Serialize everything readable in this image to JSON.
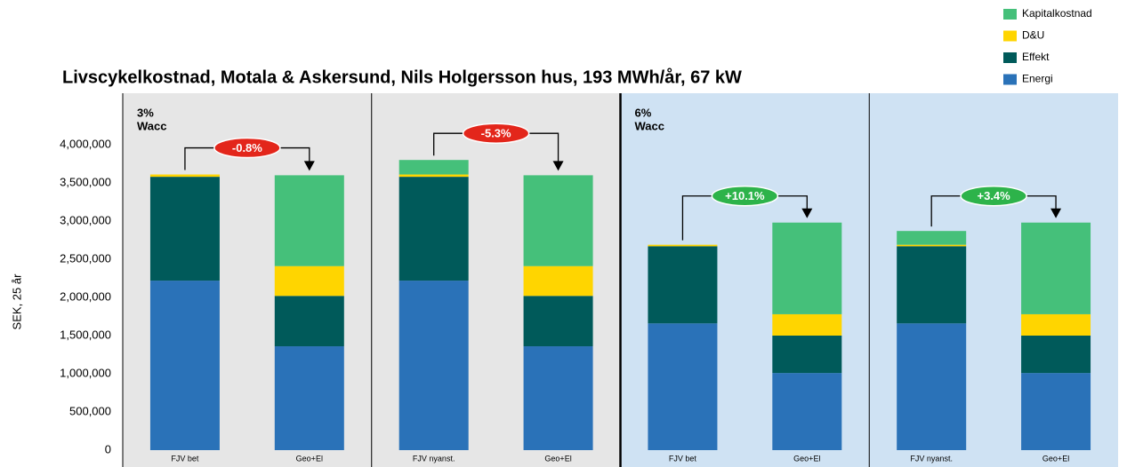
{
  "chart_data": {
    "type": "stacked-bar",
    "title": "Livscykelkostnad, Motala & Askersund, Nils Holgersson hus, 193 MWh/år, 67 kW",
    "y_label": "SEK, 25 år",
    "categories": [
      "FJV bet",
      "Geo+El",
      "FJV nyanst.",
      "Geo+El",
      "FJV bet",
      "Geo+El",
      "FJV nyanst.",
      "Geo+El"
    ],
    "series": [
      {
        "name": "Energi",
        "color": "#2a72b8",
        "values": [
          2220000,
          1360000,
          2220000,
          1360000,
          1660000,
          1010000,
          1660000,
          1010000
        ]
      },
      {
        "name": "Effekt",
        "color": "#005a5a",
        "values": [
          1360000,
          660000,
          1360000,
          660000,
          1010000,
          490000,
          1010000,
          490000
        ]
      },
      {
        "name": "D&U",
        "color": "#ffd500",
        "values": [
          30000,
          390000,
          30000,
          390000,
          20000,
          280000,
          20000,
          280000
        ]
      },
      {
        "name": "Kapitalkostnad",
        "color": "#45c07a",
        "values": [
          0,
          1190000,
          190000,
          1190000,
          0,
          1200000,
          180000,
          1200000
        ]
      }
    ],
    "ylim": [
      0,
      4500000
    ],
    "yticks": [
      0,
      {
        "value": 500000,
        "label": "500,000"
      },
      {
        "value": 1000000,
        "label": "1,000,000"
      },
      {
        "value": 1500000,
        "label": "1,500,000"
      },
      {
        "value": 2000000,
        "label": "2,000,000"
      },
      {
        "value": 2500000,
        "label": "2,500,000"
      },
      {
        "value": 3000000,
        "label": "3,000,000"
      },
      {
        "value": 3500000,
        "label": "3,500,000"
      },
      {
        "value": 4000000,
        "label": "4,000,000"
      }
    ],
    "panel_labels": [
      [
        "3%",
        "Wacc"
      ],
      [
        "6%",
        "Wacc"
      ]
    ],
    "changes": [
      {
        "label": "-0.8%",
        "color": "#e3261b"
      },
      {
        "label": "-5.3%",
        "color": "#e3261b"
      },
      {
        "label": "+10.1%",
        "color": "#2db34a"
      },
      {
        "label": "+3.4%",
        "color": "#2db34a"
      }
    ]
  }
}
